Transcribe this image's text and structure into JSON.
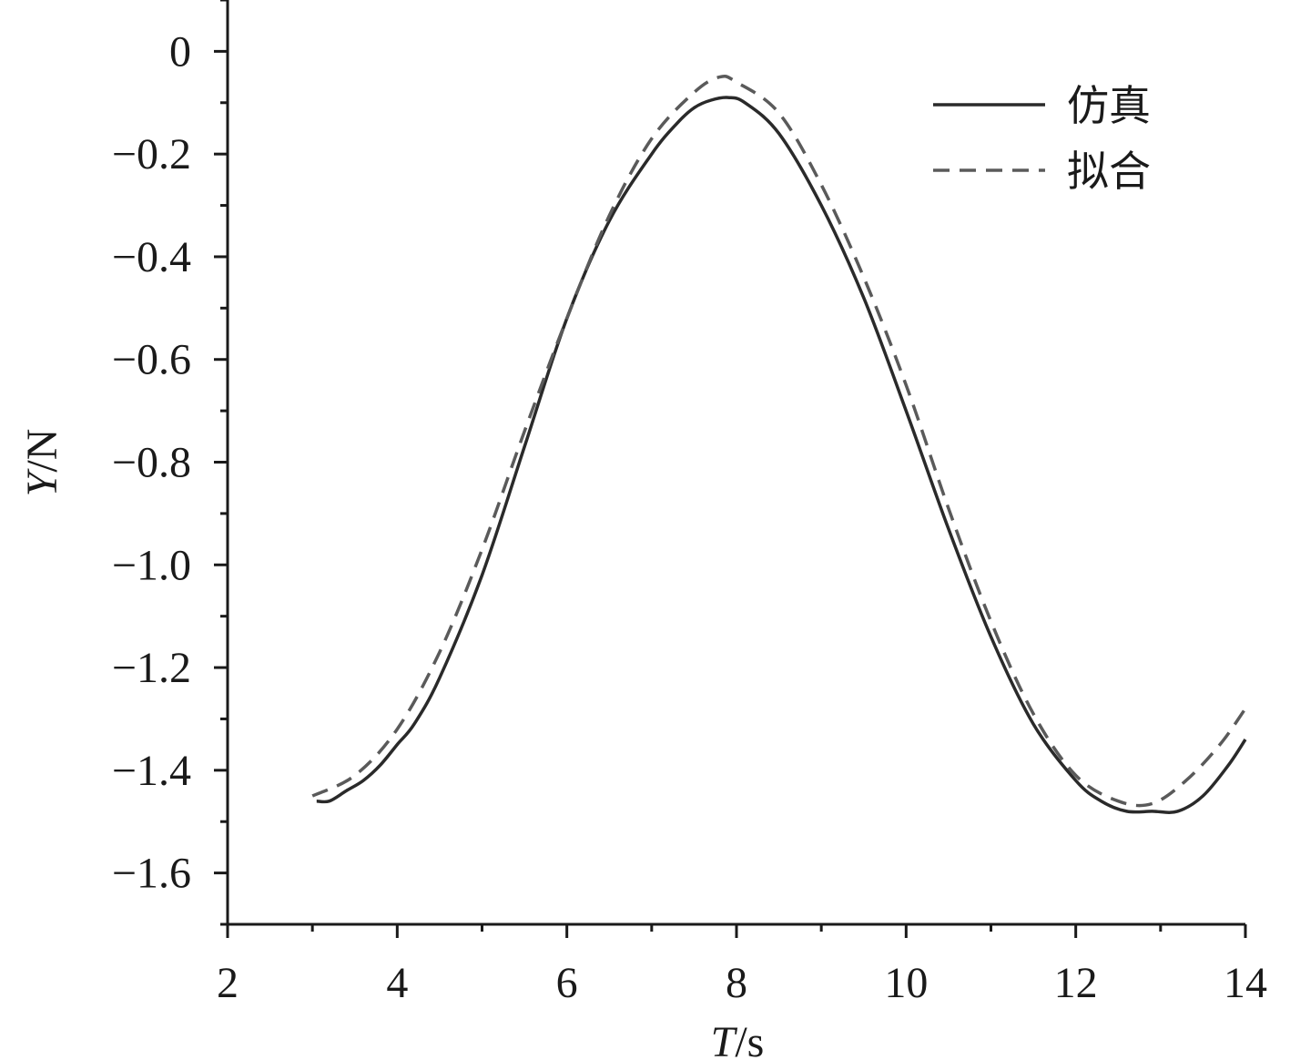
{
  "chart_data": {
    "type": "line",
    "title": "",
    "xlabel": {
      "var": "T",
      "unit": "/s"
    },
    "ylabel": {
      "var": "Y",
      "unit": "/N"
    },
    "xlim": [
      2,
      14
    ],
    "ylim": [
      -1.7,
      0.1
    ],
    "xticks": [
      {
        "v": 2,
        "label": "2"
      },
      {
        "v": 4,
        "label": "4"
      },
      {
        "v": 6,
        "label": "6"
      },
      {
        "v": 8,
        "label": "8"
      },
      {
        "v": 10,
        "label": "10"
      },
      {
        "v": 12,
        "label": "12"
      },
      {
        "v": 14,
        "label": "14"
      }
    ],
    "yticks": [
      {
        "v": 0,
        "label": "0"
      },
      {
        "v": -0.2,
        "label": "−0.2"
      },
      {
        "v": -0.4,
        "label": "−0.4"
      },
      {
        "v": -0.6,
        "label": "−0.6"
      },
      {
        "v": -0.8,
        "label": "−0.8"
      },
      {
        "v": -1.0,
        "label": "−1.0"
      },
      {
        "v": -1.2,
        "label": "−1.2"
      },
      {
        "v": -1.4,
        "label": "−1.4"
      },
      {
        "v": -1.6,
        "label": "−1.6"
      }
    ],
    "grid": false,
    "legend_position": "top-right",
    "series": [
      {
        "name": "仿真",
        "style": "solid",
        "color": "#2a2a2a",
        "x": [
          3.05,
          3.2,
          3.4,
          3.6,
          3.8,
          4.0,
          4.2,
          4.5,
          5.0,
          5.5,
          6.0,
          6.5,
          7.0,
          7.3,
          7.5,
          7.7,
          7.9,
          8.1,
          8.5,
          9.0,
          9.5,
          10.0,
          10.5,
          11.0,
          11.5,
          12.0,
          12.3,
          12.6,
          12.9,
          13.2,
          13.5,
          13.8,
          14.0
        ],
        "y": [
          -1.46,
          -1.46,
          -1.44,
          -1.42,
          -1.39,
          -1.35,
          -1.31,
          -1.22,
          -1.02,
          -0.77,
          -0.52,
          -0.33,
          -0.2,
          -0.14,
          -0.11,
          -0.095,
          -0.09,
          -0.1,
          -0.16,
          -0.3,
          -0.48,
          -0.7,
          -0.93,
          -1.14,
          -1.31,
          -1.42,
          -1.46,
          -1.48,
          -1.48,
          -1.48,
          -1.45,
          -1.39,
          -1.34
        ]
      },
      {
        "name": "拟合",
        "style": "dashed",
        "color": "#5a5a5a",
        "x": [
          3.0,
          3.5,
          4.0,
          4.5,
          5.0,
          5.5,
          6.0,
          6.5,
          7.0,
          7.5,
          7.8,
          8.0,
          8.5,
          9.0,
          9.5,
          10.0,
          10.5,
          11.0,
          11.5,
          12.0,
          12.5,
          12.9,
          13.3,
          13.7,
          14.0
        ],
        "y": [
          -1.45,
          -1.41,
          -1.32,
          -1.17,
          -0.97,
          -0.74,
          -0.52,
          -0.32,
          -0.17,
          -0.08,
          -0.05,
          -0.06,
          -0.12,
          -0.26,
          -0.44,
          -0.65,
          -0.89,
          -1.11,
          -1.29,
          -1.41,
          -1.46,
          -1.465,
          -1.42,
          -1.35,
          -1.28
        ]
      }
    ]
  }
}
